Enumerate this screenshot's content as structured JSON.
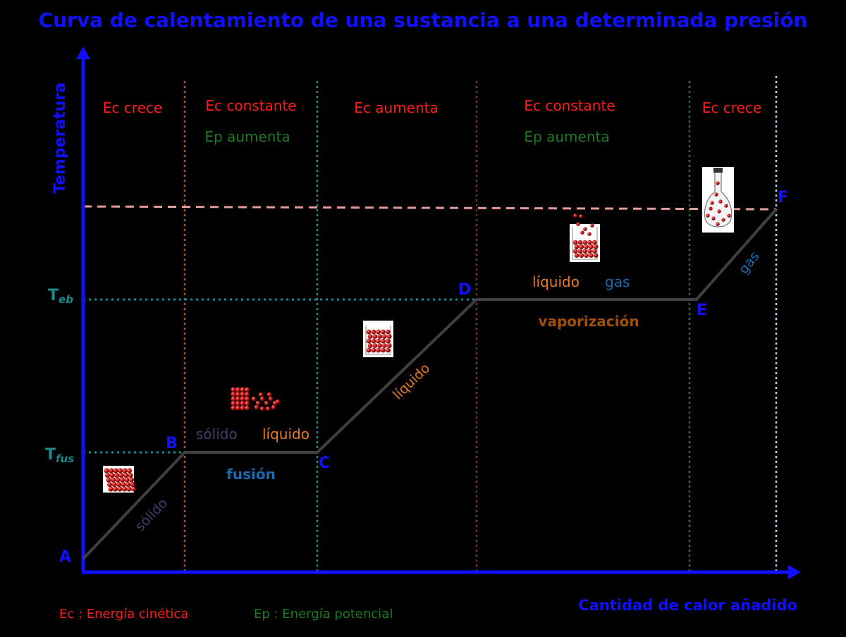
{
  "title": "Curva de calentamiento de una sustancia a una determinada presión",
  "axes": {
    "y_label": "Temperatura",
    "x_label": "Cantidad de calor añadido",
    "t_fus": {
      "main": "T",
      "sub": "fus"
    },
    "t_eb": {
      "main": "T",
      "sub": "eb"
    }
  },
  "regions": [
    {
      "ec": "Ec crece",
      "ep": ""
    },
    {
      "ec": "Ec constante",
      "ep": "Ep aumenta"
    },
    {
      "ec": "Ec aumenta",
      "ep": ""
    },
    {
      "ec": "Ec constante",
      "ep": "Ep aumenta"
    },
    {
      "ec": "Ec crece",
      "ep": ""
    }
  ],
  "points": {
    "A": "A",
    "B": "B",
    "C": "C",
    "D": "D",
    "E": "E",
    "F": "F"
  },
  "segments": {
    "solido": "sólido",
    "liquido": "líquido",
    "gas": "gas",
    "fusion": "fusión",
    "vaporizacion": "vaporización",
    "fusion_left": "sólido",
    "fusion_right": "líquido",
    "vapor_left": "líquido",
    "vapor_right": "gas"
  },
  "legend": {
    "ec": "Ec : Energía cinética",
    "ep": "Ep : Energía potencial"
  },
  "colors": {
    "axis": "#1010ff",
    "title": "#1010ff",
    "curve": "#404040",
    "ec": "#ff1a1a",
    "ep": "#1e7a1e",
    "teal": "#1a8a8a",
    "orange": "#e87a1a",
    "purple": "#4a3a6a",
    "blue_label": "#1a6ab0",
    "brown": "#a0500a",
    "pink_dash": "#e89a9a"
  }
}
